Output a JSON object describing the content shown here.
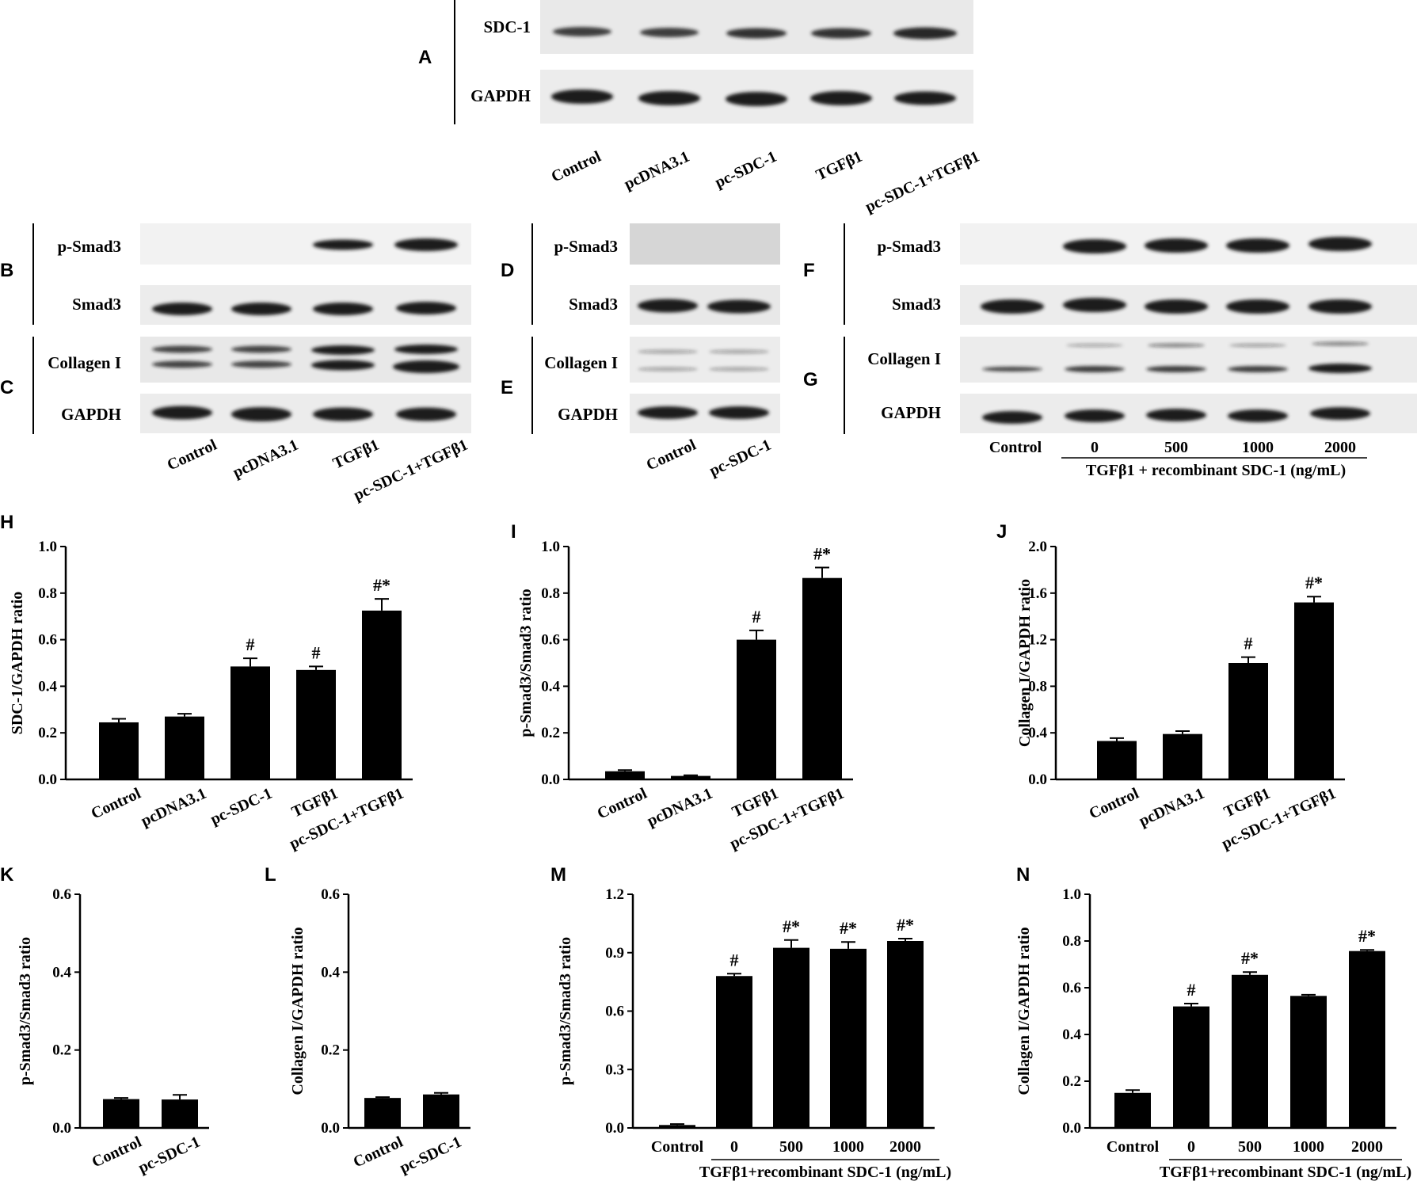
{
  "blots": [
    {
      "panel": "A",
      "rows": [
        "SDC-1",
        "GAPDH"
      ],
      "lanes": [
        "Control",
        "pcDNA3.1",
        "pc-SDC-1",
        "TGFβ1",
        "pc-SDC-1+TGFβ1"
      ]
    },
    {
      "panel": "B",
      "rows": [
        "p-Smad3",
        "Smad3"
      ]
    },
    {
      "panel": "C",
      "rows": [
        "Collagen I",
        "GAPDH"
      ],
      "lanes": [
        "Control",
        "pcDNA3.1",
        "TGFβ1",
        "pc-SDC-1+TGFβ1"
      ]
    },
    {
      "panel": "D",
      "rows": [
        "p-Smad3",
        "Smad3"
      ]
    },
    {
      "panel": "E",
      "rows": [
        "Collagen I",
        "GAPDH"
      ],
      "lanes": [
        "Control",
        "pc-SDC-1"
      ]
    },
    {
      "panel": "F",
      "rows": [
        "p-Smad3",
        "Smad3"
      ]
    },
    {
      "panel": "G",
      "rows": [
        "Collagen I",
        "GAPDH"
      ],
      "lanes": [
        "Control",
        "0",
        "500",
        "1000",
        "2000"
      ],
      "group_label": "TGFβ1 + recombinant SDC-1 (ng/mL)"
    }
  ],
  "chart_data": [
    {
      "panel": "H",
      "type": "bar",
      "ylabel": "SDC-1/GAPDH ratio",
      "ylim": [
        0,
        1.0
      ],
      "yticks": [
        "0.0",
        "0.2",
        "0.4",
        "0.6",
        "0.8",
        "1.0"
      ],
      "categories": [
        "Control",
        "pcDNA3.1",
        "pc-SDC-1",
        "TGFβ1",
        "pc-SDC-1+TGFβ1"
      ],
      "values": [
        0.245,
        0.27,
        0.485,
        0.47,
        0.725
      ],
      "errors": [
        0.015,
        0.012,
        0.035,
        0.015,
        0.05
      ],
      "annotations": [
        "",
        "",
        "#",
        "#",
        "#*"
      ]
    },
    {
      "panel": "I",
      "type": "bar",
      "ylabel": "p-Smad3/Smad3 ratio",
      "ylim": [
        0,
        1.0
      ],
      "yticks": [
        "0.0",
        "0.2",
        "0.4",
        "0.6",
        "0.8",
        "1.0"
      ],
      "categories": [
        "Control",
        "pcDNA3.1",
        "TGFβ1",
        "pc-SDC-1+TGFβ1"
      ],
      "values": [
        0.035,
        0.015,
        0.6,
        0.865
      ],
      "errors": [
        0.005,
        0.003,
        0.04,
        0.045
      ],
      "annotations": [
        "",
        "",
        "#",
        "#*"
      ]
    },
    {
      "panel": "J",
      "type": "bar",
      "ylabel": "Collagen I/GAPDH ratio",
      "ylim": [
        0,
        2.0
      ],
      "yticks": [
        "0.0",
        "0.4",
        "0.8",
        "1.2",
        "1.6",
        "2.0"
      ],
      "categories": [
        "Control",
        "pcDNA3.1",
        "TGFβ1",
        "pc-SDC-1+TGFβ1"
      ],
      "values": [
        0.33,
        0.39,
        1.0,
        1.52
      ],
      "errors": [
        0.025,
        0.025,
        0.05,
        0.05
      ],
      "annotations": [
        "",
        "",
        "#",
        "#*"
      ]
    },
    {
      "panel": "K",
      "type": "bar",
      "ylabel": "p-Smad3/Smad3 ratio",
      "ylim": [
        0,
        0.6
      ],
      "yticks": [
        "0.0",
        "0.2",
        "0.4",
        "0.6"
      ],
      "categories": [
        "Control",
        "pc-SDC-1"
      ],
      "values": [
        0.074,
        0.073
      ],
      "errors": [
        0.003,
        0.012
      ],
      "annotations": [
        "",
        ""
      ]
    },
    {
      "panel": "L",
      "type": "bar",
      "ylabel": "Collagen I/GAPDH ratio",
      "ylim": [
        0,
        0.6
      ],
      "yticks": [
        "0.0",
        "0.2",
        "0.4",
        "0.6"
      ],
      "categories": [
        "Control",
        "pc-SDC-1"
      ],
      "values": [
        0.077,
        0.086
      ],
      "errors": [
        0.002,
        0.004
      ],
      "annotations": [
        "",
        ""
      ]
    },
    {
      "panel": "M",
      "type": "bar",
      "ylabel": "p-Smad3/Smad3 ratio",
      "ylim": [
        0,
        1.2
      ],
      "yticks": [
        "0.0",
        "0.3",
        "0.6",
        "0.9",
        "1.2"
      ],
      "categories": [
        "Control",
        "0",
        "500",
        "1000",
        "2000"
      ],
      "values": [
        0.015,
        0.78,
        0.925,
        0.92,
        0.96
      ],
      "errors": [
        0.005,
        0.012,
        0.04,
        0.035,
        0.012
      ],
      "annotations": [
        "",
        "#",
        "#*",
        "#*",
        "#*"
      ],
      "group_label": "TGFβ1+recombinant SDC-1 (ng/mL)"
    },
    {
      "panel": "N",
      "type": "bar",
      "ylabel": "Collagen I/GAPDH ratio",
      "ylim": [
        0,
        1.0
      ],
      "yticks": [
        "0.0",
        "0.2",
        "0.4",
        "0.6",
        "0.8",
        "1.0"
      ],
      "categories": [
        "Control",
        "0",
        "500",
        "1000",
        "2000"
      ],
      "values": [
        0.15,
        0.52,
        0.655,
        0.565,
        0.757
      ],
      "errors": [
        0.012,
        0.012,
        0.012,
        0.005,
        0.005
      ],
      "annotations": [
        "",
        "#",
        "#*",
        "",
        "#*"
      ],
      "group_label": "TGFβ1+recombinant SDC-1 (ng/mL)"
    }
  ]
}
